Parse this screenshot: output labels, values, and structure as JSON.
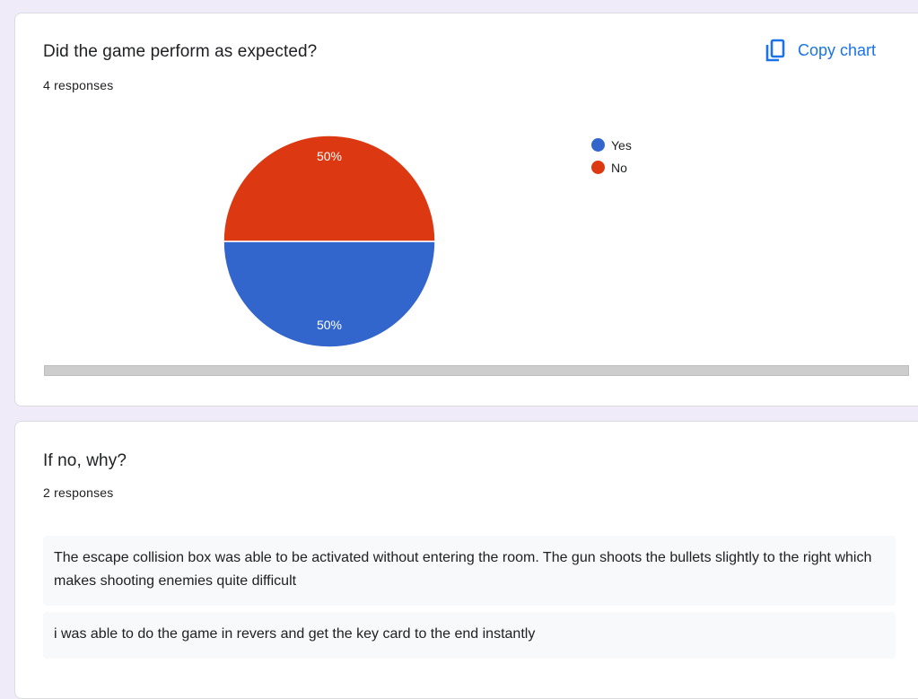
{
  "questions": [
    {
      "title": "Did the game perform as expected?",
      "response_count": "4 responses",
      "copy_chart_label": "Copy chart"
    },
    {
      "title": "If no, why?",
      "response_count": "2 responses"
    }
  ],
  "chart_data": {
    "type": "pie",
    "categories": [
      "Yes",
      "No"
    ],
    "values": [
      50,
      50
    ],
    "labels": [
      "50%",
      "50%"
    ],
    "colors": [
      "#3366cc",
      "#dc3912"
    ],
    "legend_position": "right"
  },
  "answers": [
    "The escape collision box was able to be activated without entering the room. The gun shoots the bullets slightly to the right which makes shooting enemies quite difficult",
    "i was able to do the game in revers and get the key card to the end instantly"
  ],
  "icons": {
    "copy": "copy-icon"
  }
}
